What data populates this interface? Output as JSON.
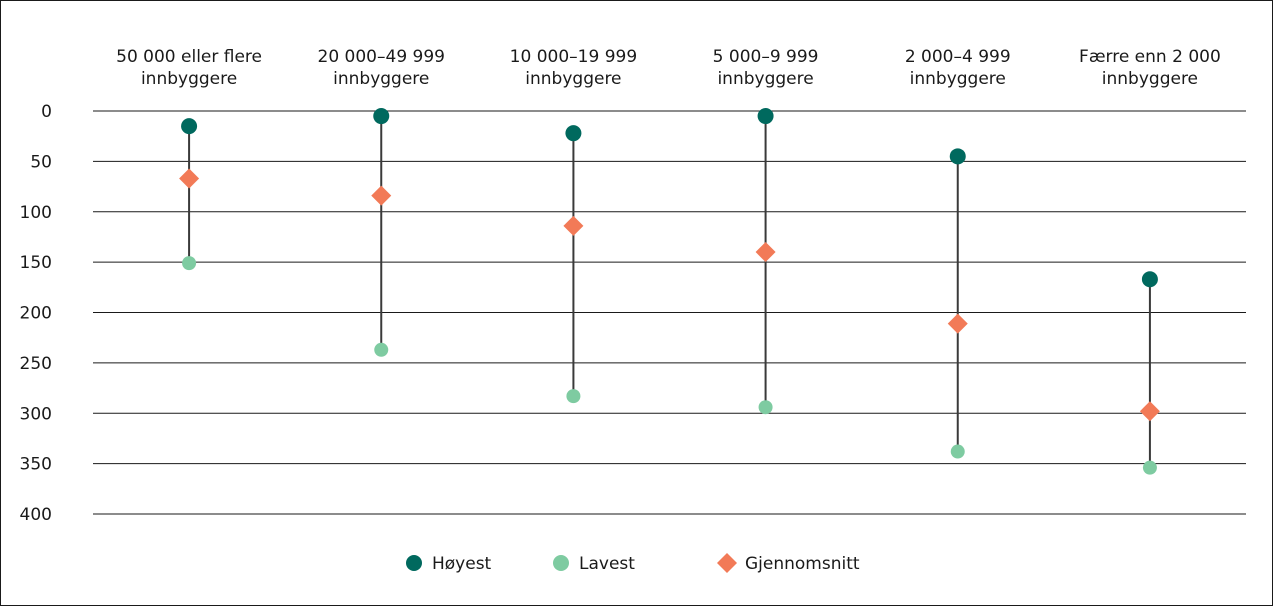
{
  "chart_data": {
    "type": "range-dot",
    "title": "",
    "xlabel": "",
    "ylabel": "",
    "y_axis_inverted": true,
    "ylim": [
      0,
      400
    ],
    "yticks": [
      "0",
      "50",
      "100",
      "150",
      "200",
      "250",
      "300",
      "350",
      "400"
    ],
    "ytick_values": [
      0,
      50,
      100,
      150,
      200,
      250,
      300,
      350,
      400
    ],
    "grid": true,
    "legend_position": "bottom",
    "categories": [
      [
        "50 000 eller flere",
        "innbyggere"
      ],
      [
        "20 000–49 999",
        "innbyggere"
      ],
      [
        "10 000–19 999",
        "innbyggere"
      ],
      [
        "5 000–9 999",
        "innbyggere"
      ],
      [
        "2 000–4 999",
        "innbyggere"
      ],
      [
        "Færre enn 2 000",
        "innbyggere"
      ]
    ],
    "series": [
      {
        "name": "Høyest",
        "marker": "circle",
        "color": "#00695e",
        "values": [
          15,
          5,
          22,
          5,
          45,
          167
        ]
      },
      {
        "name": "Lavest",
        "marker": "circle",
        "color": "#7ecba1",
        "values": [
          151,
          237,
          283,
          294,
          338,
          354
        ]
      },
      {
        "name": "Gjennomsnitt",
        "marker": "diamond",
        "color": "#f27a57",
        "values": [
          67,
          84,
          114,
          140,
          211,
          298
        ]
      }
    ],
    "connector_color": "#3a3a3a"
  }
}
